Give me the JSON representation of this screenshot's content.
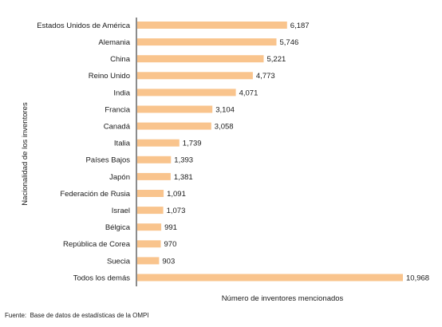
{
  "chart_data": {
    "type": "bar",
    "orientation": "horizontal",
    "categories": [
      "Estados Unidos de América",
      "Alemania",
      "China",
      "Reino Unido",
      "India",
      "Francia",
      "Canadá",
      "Italia",
      "Países Bajos",
      "Japón",
      "Federación de Rusia",
      "Israel",
      "Bélgica",
      "República de Corea",
      "Suecia",
      "Todos los demás"
    ],
    "values": [
      6187,
      5746,
      5221,
      4773,
      4071,
      3104,
      3058,
      1739,
      1393,
      1381,
      1091,
      1073,
      991,
      970,
      903,
      10968
    ],
    "value_labels": [
      "6,187",
      "5,746",
      "5,221",
      "4,773",
      "4,071",
      "3,104",
      "3,058",
      "1,739",
      "1,393",
      "1,381",
      "1,091",
      "1,073",
      "991",
      "970",
      "903",
      "10,968"
    ],
    "xlabel": "Número de inventores mencionados",
    "ylabel": "Nacionalidad de los  inventores",
    "xlim": [
      0,
      11000
    ],
    "bar_color": "#f9c48d",
    "grid": false
  },
  "source_label": "Fuente:",
  "source_text": "Base de datos de estadísticas de la OMPI"
}
